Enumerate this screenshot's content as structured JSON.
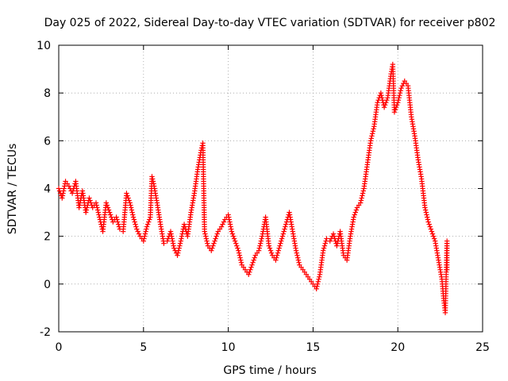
{
  "chart_data": {
    "type": "scatter",
    "title": "Day 025 of 2022, Sidereal Day-to-day VTEC variation (SDTVAR) for receiver p802",
    "xlabel": "GPS time / hours",
    "ylabel": "SDTVAR / TECUs",
    "xlim": [
      0,
      25
    ],
    "ylim": [
      -2,
      10
    ],
    "x_ticks": [
      "0",
      "5",
      "10",
      "15",
      "20",
      "25"
    ],
    "y_ticks": [
      "-2",
      "0",
      "2",
      "4",
      "6",
      "8",
      "10"
    ],
    "grid": true,
    "marker": "+",
    "series": [
      {
        "name": "SDTVAR",
        "color": "#ff0000",
        "points": [
          [
            0.0,
            4.0
          ],
          [
            0.2,
            3.6
          ],
          [
            0.4,
            4.3
          ],
          [
            0.6,
            4.1
          ],
          [
            0.8,
            3.8
          ],
          [
            1.0,
            4.3
          ],
          [
            1.2,
            3.2
          ],
          [
            1.4,
            3.9
          ],
          [
            1.6,
            3.0
          ],
          [
            1.8,
            3.6
          ],
          [
            2.0,
            3.2
          ],
          [
            2.2,
            3.4
          ],
          [
            2.4,
            2.8
          ],
          [
            2.6,
            2.2
          ],
          [
            2.8,
            3.4
          ],
          [
            3.0,
            3.0
          ],
          [
            3.2,
            2.6
          ],
          [
            3.4,
            2.8
          ],
          [
            3.6,
            2.3
          ],
          [
            3.8,
            2.2
          ],
          [
            4.0,
            3.8
          ],
          [
            4.2,
            3.4
          ],
          [
            4.4,
            2.8
          ],
          [
            4.6,
            2.3
          ],
          [
            4.8,
            2.0
          ],
          [
            5.0,
            1.8
          ],
          [
            5.2,
            2.4
          ],
          [
            5.4,
            2.8
          ],
          [
            5.5,
            4.5
          ],
          [
            5.6,
            4.2
          ],
          [
            5.8,
            3.4
          ],
          [
            6.0,
            2.5
          ],
          [
            6.2,
            1.7
          ],
          [
            6.4,
            1.8
          ],
          [
            6.6,
            2.2
          ],
          [
            6.8,
            1.5
          ],
          [
            7.0,
            1.2
          ],
          [
            7.2,
            1.8
          ],
          [
            7.4,
            2.5
          ],
          [
            7.6,
            2.0
          ],
          [
            7.8,
            3.0
          ],
          [
            8.0,
            3.8
          ],
          [
            8.2,
            4.8
          ],
          [
            8.4,
            5.6
          ],
          [
            8.5,
            5.9
          ],
          [
            8.6,
            2.2
          ],
          [
            8.8,
            1.6
          ],
          [
            9.0,
            1.4
          ],
          [
            9.2,
            1.8
          ],
          [
            9.4,
            2.2
          ],
          [
            9.6,
            2.4
          ],
          [
            9.8,
            2.7
          ],
          [
            10.0,
            2.9
          ],
          [
            10.2,
            2.2
          ],
          [
            10.4,
            1.8
          ],
          [
            10.6,
            1.4
          ],
          [
            10.8,
            0.8
          ],
          [
            11.0,
            0.6
          ],
          [
            11.2,
            0.4
          ],
          [
            11.4,
            0.8
          ],
          [
            11.6,
            1.2
          ],
          [
            11.8,
            1.4
          ],
          [
            12.0,
            2.0
          ],
          [
            12.2,
            2.8
          ],
          [
            12.4,
            1.6
          ],
          [
            12.6,
            1.2
          ],
          [
            12.8,
            1.0
          ],
          [
            13.0,
            1.5
          ],
          [
            13.2,
            2.0
          ],
          [
            13.4,
            2.5
          ],
          [
            13.6,
            3.0
          ],
          [
            13.8,
            2.2
          ],
          [
            14.0,
            1.4
          ],
          [
            14.2,
            0.8
          ],
          [
            14.4,
            0.6
          ],
          [
            14.6,
            0.4
          ],
          [
            14.8,
            0.2
          ],
          [
            15.0,
            0.0
          ],
          [
            15.2,
            -0.2
          ],
          [
            15.4,
            0.4
          ],
          [
            15.6,
            1.4
          ],
          [
            15.8,
            1.9
          ],
          [
            16.0,
            1.8
          ],
          [
            16.2,
            2.1
          ],
          [
            16.4,
            1.6
          ],
          [
            16.6,
            2.2
          ],
          [
            16.8,
            1.2
          ],
          [
            17.0,
            1.0
          ],
          [
            17.2,
            2.0
          ],
          [
            17.4,
            2.8
          ],
          [
            17.6,
            3.2
          ],
          [
            17.8,
            3.4
          ],
          [
            18.0,
            4.0
          ],
          [
            18.2,
            5.0
          ],
          [
            18.4,
            6.0
          ],
          [
            18.6,
            6.6
          ],
          [
            18.8,
            7.6
          ],
          [
            19.0,
            8.0
          ],
          [
            19.2,
            7.4
          ],
          [
            19.4,
            7.8
          ],
          [
            19.6,
            8.8
          ],
          [
            19.7,
            9.2
          ],
          [
            19.8,
            7.2
          ],
          [
            20.0,
            7.6
          ],
          [
            20.2,
            8.2
          ],
          [
            20.4,
            8.5
          ],
          [
            20.6,
            8.3
          ],
          [
            20.8,
            7.0
          ],
          [
            21.0,
            6.2
          ],
          [
            21.2,
            5.2
          ],
          [
            21.4,
            4.4
          ],
          [
            21.6,
            3.2
          ],
          [
            21.8,
            2.6
          ],
          [
            22.0,
            2.2
          ],
          [
            22.2,
            1.8
          ],
          [
            22.4,
            1.0
          ],
          [
            22.6,
            0.2
          ],
          [
            22.7,
            -0.6
          ],
          [
            22.8,
            -1.2
          ],
          [
            22.9,
            1.8
          ],
          [
            22.9,
            0.6
          ]
        ]
      }
    ]
  }
}
